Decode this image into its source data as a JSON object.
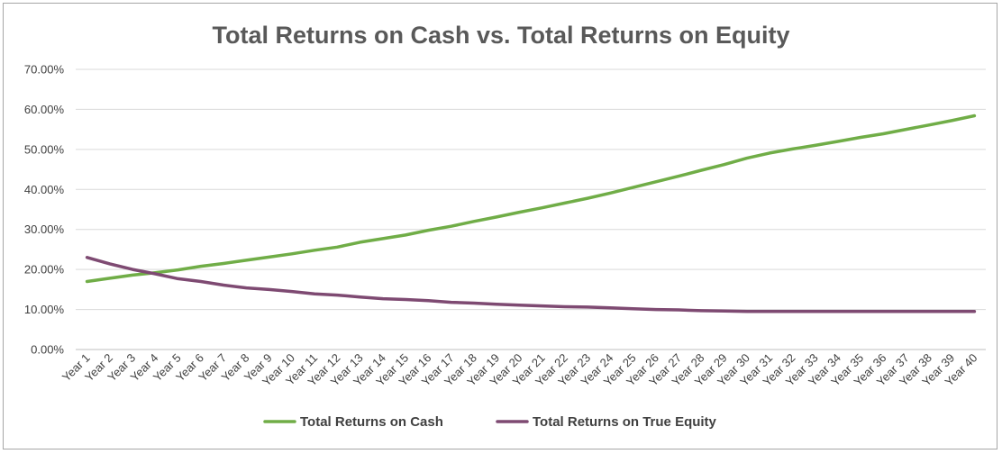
{
  "chart_data": {
    "type": "line",
    "title": "Total Returns on Cash vs. Total Returns on Equity",
    "xlabel": "",
    "ylabel": "",
    "ylim": [
      0,
      70
    ],
    "yticks": [
      "0.00%",
      "10.00%",
      "20.00%",
      "30.00%",
      "40.00%",
      "50.00%",
      "60.00%",
      "70.00%"
    ],
    "grid": "horizontal",
    "legend_position": "bottom",
    "categories": [
      "Year 1",
      "Year 2",
      "Year 3",
      "Year 4",
      "Year 5",
      "Year 6",
      "Year 7",
      "Year 8",
      "Year 9",
      "Year 10",
      "Year 11",
      "Year 12",
      "Year 13",
      "Year 14",
      "Year 15",
      "Year 16",
      "Year 17",
      "Year 18",
      "Year 19",
      "Year 20",
      "Year 21",
      "Year 22",
      "Year 23",
      "Year 24",
      "Year 25",
      "Year 26",
      "Year 27",
      "Year 28",
      "Year 29",
      "Year 30",
      "Year 31",
      "Year 32",
      "Year 33",
      "Year 34",
      "Year 35",
      "Year 36",
      "Year 37",
      "Year 38",
      "Year 39",
      "Year 40"
    ],
    "series": [
      {
        "name": "Total Returns on Cash",
        "color": "#70ad47",
        "values": [
          17.0,
          17.8,
          18.6,
          19.2,
          19.9,
          20.8,
          21.5,
          22.3,
          23.1,
          23.9,
          24.8,
          25.6,
          26.8,
          27.7,
          28.6,
          29.8,
          30.8,
          32.0,
          33.1,
          34.3,
          35.4,
          36.6,
          37.8,
          39.1,
          40.5,
          41.9,
          43.3,
          44.8,
          46.2,
          47.8,
          49.1,
          50.1,
          51.0,
          52.0,
          53.0,
          53.9,
          55.0,
          56.1,
          57.2,
          58.4
        ]
      },
      {
        "name": "Total Returns on True Equity",
        "color": "#7e4a72",
        "values": [
          23.0,
          21.4,
          20.0,
          18.9,
          17.7,
          17.0,
          16.1,
          15.4,
          15.0,
          14.5,
          13.9,
          13.6,
          13.1,
          12.7,
          12.5,
          12.2,
          11.8,
          11.6,
          11.3,
          11.1,
          10.9,
          10.7,
          10.6,
          10.4,
          10.2,
          10.0,
          9.9,
          9.7,
          9.6,
          9.5,
          9.5,
          9.5,
          9.5,
          9.5,
          9.5,
          9.5,
          9.5,
          9.5,
          9.5,
          9.5
        ]
      }
    ]
  }
}
